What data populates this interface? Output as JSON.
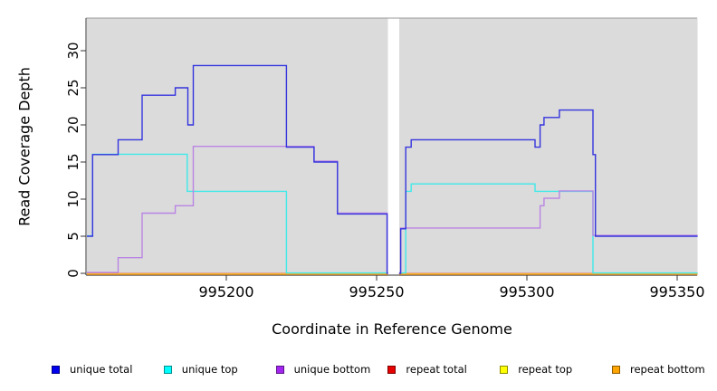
{
  "chart_data": {
    "type": "line",
    "subtype": "step-coverage-plot",
    "title": "",
    "xlabel": "Coordinate in Reference Genome",
    "ylabel": "Read Coverage Depth",
    "x_ticks": [
      995200,
      995250,
      995300,
      995350
    ],
    "y_ticks": [
      0,
      5,
      10,
      15,
      20,
      25,
      30
    ],
    "xlim": [
      995153.6,
      995356.8
    ],
    "ylim": [
      0,
      33.5
    ],
    "grid": false,
    "plot_background": "#DBDBDB",
    "gap_region": [
      995253.8,
      995257.5
    ],
    "panels": [
      [
        995153.6,
        995253.8
      ],
      [
        995257.5,
        995356.8
      ]
    ],
    "legend_position": "bottom",
    "series": [
      {
        "name": "unique total",
        "legend_color": "#0000EE",
        "line_color": "#3434DE",
        "panels": [
          [
            [
              995153.6,
              5
            ],
            [
              995155.5,
              16
            ],
            [
              995164,
              18
            ],
            [
              995172,
              24
            ],
            [
              995183,
              25
            ],
            [
              995187.2,
              20
            ],
            [
              995189,
              28
            ],
            [
              995220,
              17
            ],
            [
              995229.2,
              15
            ],
            [
              995237,
              8
            ],
            [
              995253.5,
              0
            ],
            [
              995253.8,
              0
            ]
          ],
          [
            [
              995257.5,
              0
            ],
            [
              995258,
              6
            ],
            [
              995259.7,
              17
            ],
            [
              995261.5,
              18
            ],
            [
              995302.7,
              17
            ],
            [
              995304.4,
              20
            ],
            [
              995305.7,
              21
            ],
            [
              995310.8,
              22
            ],
            [
              995322,
              16
            ],
            [
              995322.8,
              5
            ],
            [
              995356.8,
              5
            ]
          ]
        ]
      },
      {
        "name": "unique top",
        "legend_color": "#00FFFF",
        "line_color": "#3FE9E9",
        "panels": [
          [
            [
              995153.6,
              5
            ],
            [
              995155.5,
              16
            ],
            [
              995187,
              11
            ],
            [
              995220,
              0
            ],
            [
              995253.8,
              0
            ]
          ],
          [
            [
              995257.5,
              0
            ],
            [
              995259.7,
              11
            ],
            [
              995261.5,
              12
            ],
            [
              995302.7,
              11
            ],
            [
              995322,
              0
            ],
            [
              995356.8,
              0
            ]
          ]
        ]
      },
      {
        "name": "unique bottom",
        "legend_color": "#A225F0",
        "line_color": "#BA84E3",
        "panels": [
          [
            [
              995153.6,
              0
            ],
            [
              995164,
              2
            ],
            [
              995172,
              8
            ],
            [
              995183,
              9
            ],
            [
              995189,
              17
            ],
            [
              995229.2,
              15
            ],
            [
              995237,
              8
            ],
            [
              995253.5,
              0
            ],
            [
              995253.8,
              0
            ]
          ],
          [
            [
              995257.5,
              0
            ],
            [
              995258,
              6
            ],
            [
              995304.4,
              9
            ],
            [
              995305.7,
              10
            ],
            [
              995310.8,
              11
            ],
            [
              995322,
              5
            ],
            [
              995356.8,
              5
            ]
          ]
        ]
      },
      {
        "name": "repeat total",
        "legend_color": "#E60000",
        "line_color": "#E05060",
        "panels": [
          [
            [
              995153.6,
              0
            ],
            [
              995253.8,
              0
            ]
          ],
          [
            [
              995257.5,
              0
            ],
            [
              995356.8,
              0
            ]
          ]
        ]
      },
      {
        "name": "repeat top",
        "legend_color": "#FFFF00",
        "line_color": "#E8E840",
        "panels": [
          [
            [
              995153.6,
              0
            ],
            [
              995253.8,
              0
            ]
          ],
          [
            [
              995257.5,
              0
            ],
            [
              995356.8,
              0
            ]
          ]
        ]
      },
      {
        "name": "repeat bottom",
        "legend_color": "#FFA500",
        "line_color": "#FFA424",
        "panels": [
          [
            [
              995153.6,
              0
            ],
            [
              995253.8,
              0
            ]
          ],
          [
            [
              995257.5,
              0
            ],
            [
              995356.8,
              0
            ]
          ]
        ]
      }
    ]
  }
}
